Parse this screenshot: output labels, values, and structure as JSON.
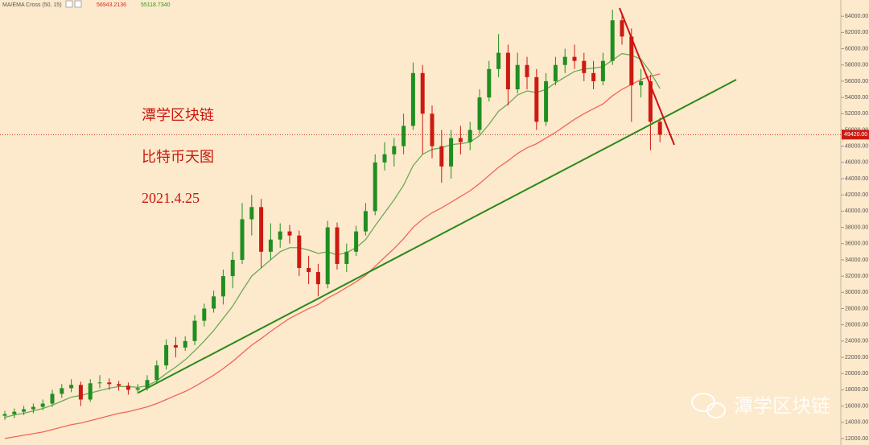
{
  "chart_data": {
    "type": "candlestick",
    "indicator": "MA/EMA Cross (50, 15)",
    "indicator_values": [
      {
        "value": 56943.2136,
        "label": "56943.2136",
        "color": "#d42a1e"
      },
      {
        "value": 55118.734,
        "label": "55118.7340",
        "color": "#2e9a1e"
      }
    ],
    "annotations": [
      "潭学区块链",
      "比特币天图",
      "2021.4.25"
    ],
    "watermark": "潭学区块链",
    "up_color": "#1f8f1f",
    "down_color": "#cc1a12",
    "open": [
      14800,
      15000,
      15300,
      15600,
      15900,
      16300,
      17500,
      18200,
      18600,
      16800,
      18800,
      18900,
      18700,
      18500,
      18000,
      18200,
      19200,
      21000,
      23500,
      23200,
      24000,
      26500,
      28000,
      29500,
      32000,
      34000,
      39000,
      40500,
      35000,
      36500,
      37500,
      37000,
      33000,
      32500,
      31000,
      38000,
      33500,
      35000,
      37500,
      40000,
      46000,
      47000,
      48000,
      50500,
      57000,
      52000,
      48000,
      45500,
      49000,
      48500,
      50000,
      54000,
      57500,
      59500,
      55000,
      58000,
      56500,
      51000,
      56000,
      58000,
      59000,
      58500,
      57000,
      56000,
      58500,
      63500,
      61500,
      55500,
      56000,
      51000
    ],
    "high": [
      15400,
      15700,
      16000,
      16300,
      16800,
      18000,
      18700,
      19300,
      19000,
      19300,
      19800,
      19400,
      19100,
      18900,
      18700,
      19800,
      21600,
      24200,
      24500,
      24600,
      27200,
      28600,
      30200,
      32800,
      35000,
      41000,
      42000,
      41500,
      38500,
      38500,
      38300,
      37600,
      34500,
      33500,
      38800,
      38600,
      36000,
      38200,
      41000,
      47000,
      48500,
      49000,
      52000,
      58300,
      58000,
      53000,
      50000,
      50000,
      50500,
      51000,
      55000,
      58500,
      61800,
      60500,
      59500,
      59000,
      57500,
      57000,
      59000,
      60000,
      60500,
      59500,
      58500,
      59500,
      64800,
      64300,
      62500,
      57500,
      56800,
      51500
    ],
    "low": [
      14300,
      14500,
      14900,
      15100,
      15500,
      15900,
      17000,
      17700,
      16000,
      16500,
      18200,
      18000,
      17900,
      17400,
      17500,
      17900,
      18800,
      20500,
      22000,
      22800,
      23500,
      25800,
      27500,
      28500,
      30500,
      33500,
      37000,
      33000,
      34000,
      35500,
      36000,
      32000,
      31000,
      29500,
      30500,
      32800,
      32500,
      34500,
      37000,
      39500,
      45000,
      45500,
      47000,
      50000,
      47000,
      46500,
      43500,
      44000,
      47000,
      47500,
      49500,
      53500,
      56500,
      53000,
      54500,
      55000,
      50000,
      50500,
      55500,
      57000,
      57500,
      56000,
      55000,
      55500,
      58000,
      60500,
      51000,
      54000,
      47500,
      48500
    ],
    "close": [
      15000,
      15300,
      15600,
      15900,
      16300,
      17500,
      18200,
      18600,
      16800,
      18800,
      18900,
      18700,
      18500,
      18000,
      18200,
      19200,
      21000,
      23500,
      23200,
      24000,
      26500,
      28000,
      29500,
      32000,
      34000,
      39000,
      40500,
      35000,
      36500,
      37500,
      37000,
      33000,
      32500,
      31000,
      38000,
      33500,
      35000,
      37500,
      40000,
      46000,
      47000,
      48000,
      50500,
      57000,
      52000,
      48000,
      45500,
      49000,
      48500,
      50000,
      54000,
      57500,
      59500,
      55000,
      58000,
      56500,
      51000,
      56000,
      58000,
      59000,
      58500,
      57000,
      56000,
      58500,
      63500,
      61500,
      55500,
      56000,
      51000,
      49420
    ],
    "series": [
      {
        "color": "#f0665a",
        "values": [
          12000,
          12200,
          12400,
          12600,
          12800,
          13100,
          13400,
          13700,
          13900,
          14200,
          14500,
          14800,
          15100,
          15300,
          15600,
          15900,
          16300,
          16800,
          17300,
          17800,
          18400,
          19100,
          19800,
          20600,
          21500,
          22500,
          23500,
          24300,
          25200,
          26000,
          26800,
          27400,
          28000,
          28500,
          29300,
          29900,
          30600,
          31300,
          32100,
          33200,
          34300,
          35400,
          36600,
          38000,
          39000,
          39800,
          40400,
          41100,
          41800,
          42500,
          43400,
          44400,
          45400,
          46200,
          47100,
          47800,
          48300,
          49000,
          49700,
          50500,
          51300,
          52000,
          52600,
          53200,
          54200,
          55000,
          55600,
          56200,
          56600,
          56900
        ]
      },
      {
        "color": "#6aab58",
        "values": [
          14600,
          14900,
          15100,
          15400,
          15700,
          16100,
          16600,
          17100,
          17300,
          17600,
          17900,
          18200,
          18400,
          18400,
          18300,
          18500,
          19100,
          20000,
          20800,
          21700,
          22800,
          24000,
          25300,
          26800,
          28300,
          30200,
          32000,
          33000,
          34000,
          35000,
          35500,
          35500,
          35200,
          34800,
          35000,
          34600,
          34900,
          35500,
          36500,
          38200,
          39800,
          41400,
          43200,
          45600,
          47000,
          47600,
          47800,
          48200,
          48300,
          48500,
          49300,
          50700,
          52300,
          53200,
          54300,
          54800,
          54600,
          55000,
          55800,
          56500,
          57200,
          57500,
          57600,
          57800,
          58600,
          59400,
          59200,
          58700,
          57100,
          55100
        ]
      }
    ],
    "price_line": {
      "value": 49420,
      "label": "49420.00"
    },
    "ylim": [
      11200,
      66000
    ],
    "yticks": [
      {
        "value": 12000,
        "label": "12000.00"
      },
      {
        "value": 14000,
        "label": "14000.00"
      },
      {
        "value": 16000,
        "label": "16000.00"
      },
      {
        "value": 18000,
        "label": "18000.00"
      },
      {
        "value": 20000,
        "label": "20000.00"
      },
      {
        "value": 22000,
        "label": "22000.00"
      },
      {
        "value": 24000,
        "label": "24000.00"
      },
      {
        "value": 26000,
        "label": "26000.00"
      },
      {
        "value": 28000,
        "label": "28000.00"
      },
      {
        "value": 30000,
        "label": "30000.00"
      },
      {
        "value": 32000,
        "label": "32000.00"
      },
      {
        "value": 34000,
        "label": "34000.00"
      },
      {
        "value": 36000,
        "label": "36000.00"
      },
      {
        "value": 38000,
        "label": "38000.00"
      },
      {
        "value": 40000,
        "label": "40000.00"
      },
      {
        "value": 42000,
        "label": "42000.00"
      },
      {
        "value": 44000,
        "label": "44000.00"
      },
      {
        "value": 46000,
        "label": "46000.00"
      },
      {
        "value": 48000,
        "label": "48000.00"
      },
      {
        "value": 50000,
        "label": "50000.00"
      },
      {
        "value": 52000,
        "label": "52000.00"
      },
      {
        "value": 54000,
        "label": "54000.00"
      },
      {
        "value": 56000,
        "label": "56000.00"
      },
      {
        "value": 58000,
        "label": "58000.00"
      },
      {
        "value": 60000,
        "label": "60000.00"
      },
      {
        "value": 62000,
        "label": "62000.00"
      },
      {
        "value": 64000,
        "label": "64000.00"
      }
    ]
  }
}
